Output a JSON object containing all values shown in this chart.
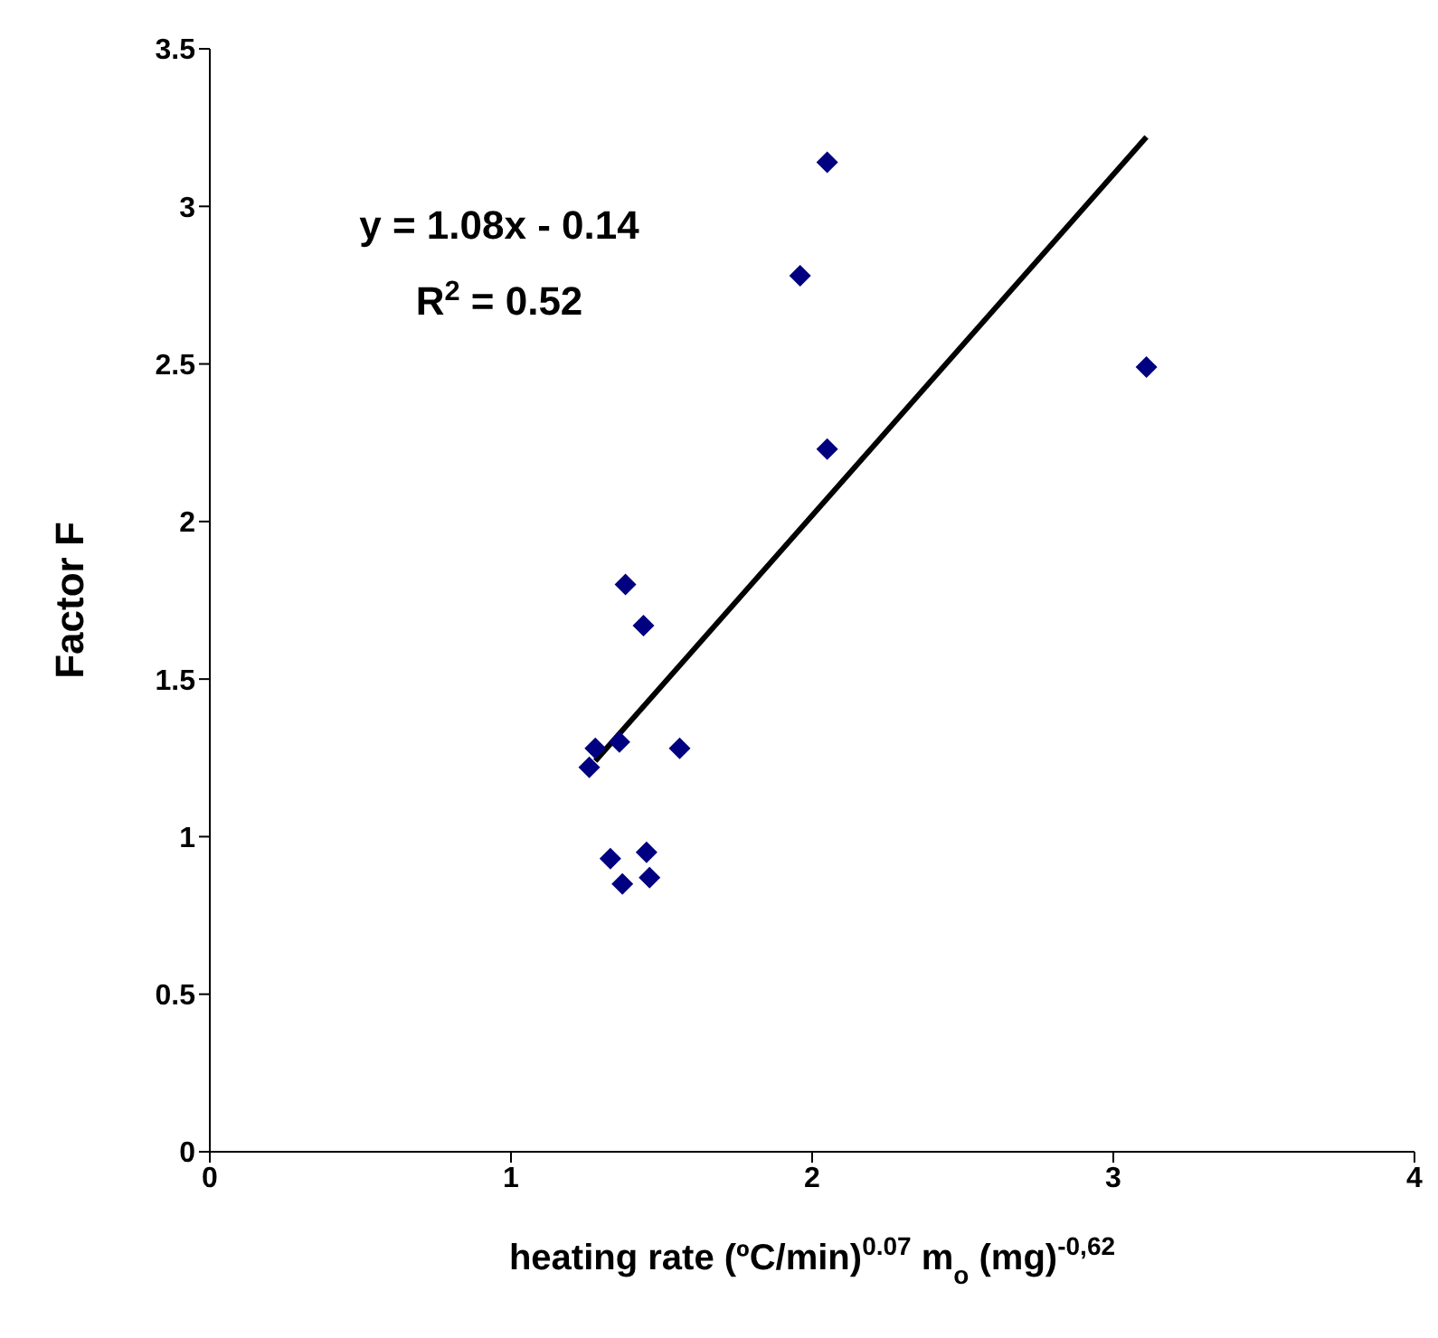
{
  "chart_data": {
    "type": "scatter",
    "xlabel": "heating rate (ºC/min)$^{0.07}$ m$_{o}$ (mg)$^{-0,62}$",
    "ylabel": "Factor F",
    "annotations": [
      "y = 1.08x - 0.14",
      "R$^{2}$ = 0.52"
    ],
    "xlim": [
      0,
      4
    ],
    "xticks": [
      0,
      1,
      2,
      3,
      4
    ],
    "ylim": [
      0,
      3.5
    ],
    "yticks": [
      0,
      0.5,
      1,
      1.5,
      2,
      2.5,
      3,
      3.5
    ],
    "series": [
      {
        "type": "scatter",
        "color": "#000080",
        "marker": "diamond",
        "x": [
          1.26,
          1.28,
          1.33,
          1.36,
          1.37,
          1.38,
          1.44,
          1.45,
          1.46,
          1.56,
          1.96,
          2.05,
          2.05,
          3.11
        ],
        "values": [
          1.22,
          1.28,
          0.93,
          1.3,
          0.85,
          1.8,
          1.67,
          0.95,
          0.87,
          1.28,
          2.78,
          2.23,
          3.14,
          2.49
        ]
      },
      {
        "type": "line",
        "color": "#000000",
        "marker": "none",
        "line_style": "solid",
        "x": [
          1.28,
          3.11
        ],
        "values": [
          1.24,
          3.22
        ]
      }
    ]
  }
}
